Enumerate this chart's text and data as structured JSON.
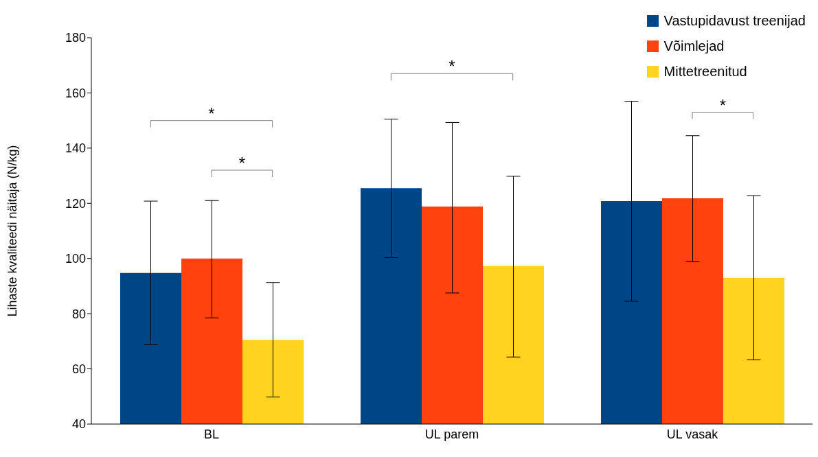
{
  "chart_data": {
    "type": "bar",
    "ylabel": "Lihaste kvaliteedi näitaja (N/kg)",
    "categories": [
      "BL",
      "UL parem",
      "UL vasak"
    ],
    "series": [
      {
        "name": "Vastupidavust treenijad",
        "color": "#004586",
        "values": [
          94.8,
          125.5,
          120.8
        ],
        "errors": [
          [
            68.8,
            120.8
          ],
          [
            100.3,
            150.5
          ],
          [
            84.5,
            157
          ]
        ]
      },
      {
        "name": "Võimlejad",
        "color": "#ff420e",
        "values": [
          100,
          118.8,
          121.8
        ],
        "errors": [
          [
            78.5,
            121
          ],
          [
            87.5,
            149.3
          ],
          [
            98.8,
            144.5
          ]
        ]
      },
      {
        "name": "Mittetreenitud",
        "color": "#ffd320",
        "values": [
          70.5,
          97.3,
          93
        ],
        "errors": [
          [
            49.8,
            91.3
          ],
          [
            64.3,
            129.8
          ],
          [
            63.3,
            122.8
          ]
        ]
      }
    ],
    "ylim": [
      40,
      180
    ],
    "yticks": [
      40,
      60,
      80,
      100,
      120,
      140,
      160,
      180
    ],
    "legend": "top right",
    "annotations": [
      "*",
      "*",
      "*",
      "*"
    ]
  }
}
